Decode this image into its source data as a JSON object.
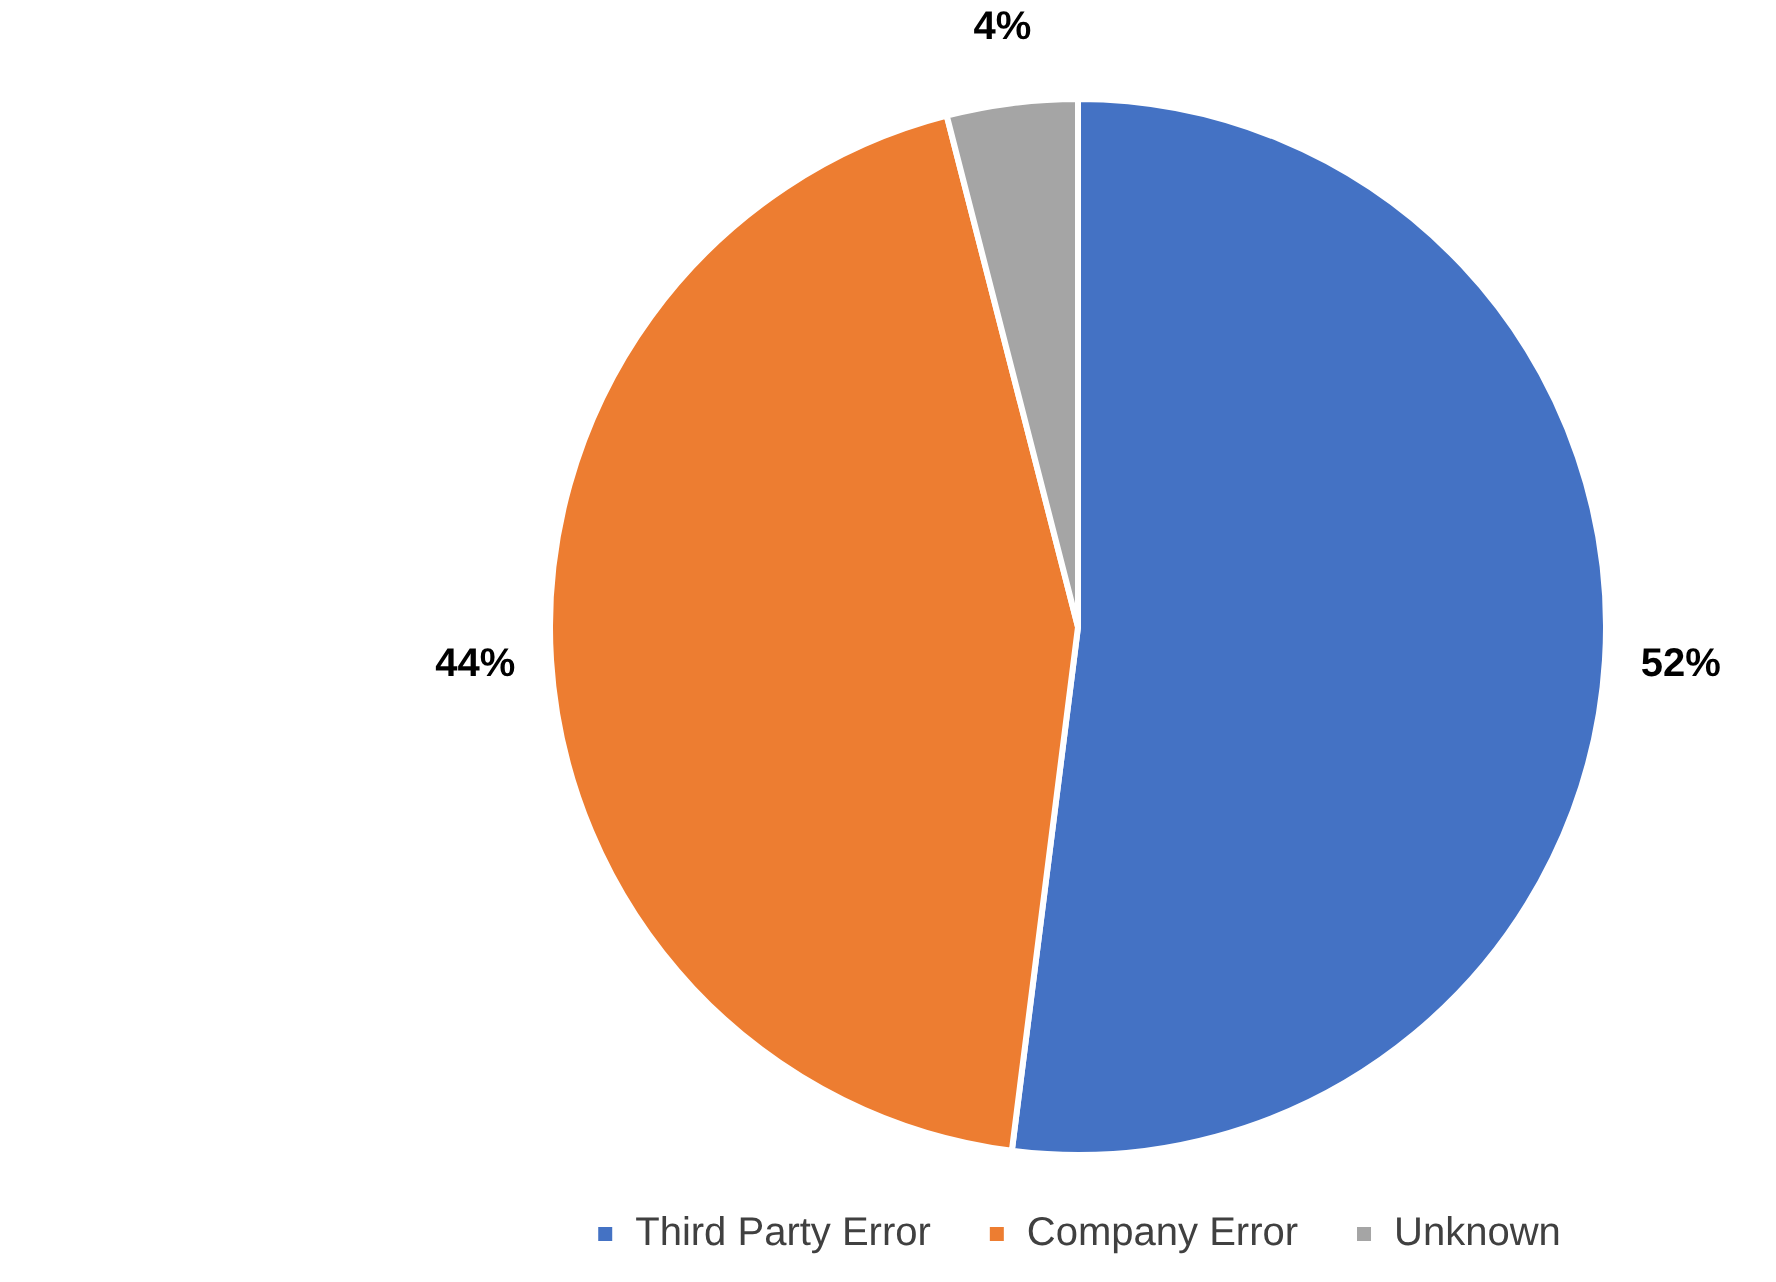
{
  "chart_data": {
    "type": "pie",
    "categories": [
      "Third Party Error",
      "Company Error",
      "Unknown"
    ],
    "values": [
      52,
      44,
      4
    ],
    "colors": [
      "#4472c4",
      "#ed7d31",
      "#a5a5a5"
    ],
    "value_labels": [
      "52%",
      "44%",
      "4%"
    ],
    "legend": "bottom"
  }
}
